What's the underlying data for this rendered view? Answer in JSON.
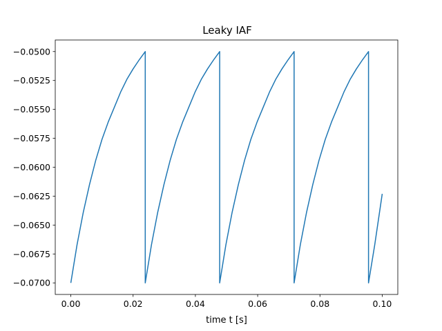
{
  "chart_data": {
    "type": "line",
    "title": "Leaky IAF",
    "xlabel": "time t [s]",
    "ylabel": "",
    "xlim": [
      -0.005,
      0.105
    ],
    "ylim": [
      -0.071,
      -0.049
    ],
    "x_ticks": [
      0.0,
      0.02,
      0.04,
      0.06,
      0.08,
      0.1
    ],
    "x_tick_labels": [
      "0.00",
      "0.02",
      "0.04",
      "0.06",
      "0.08",
      "0.10"
    ],
    "y_ticks": [
      -0.07,
      -0.0675,
      -0.065,
      -0.0625,
      -0.06,
      -0.0575,
      -0.055,
      -0.0525,
      -0.05
    ],
    "y_tick_labels": [
      "−0.0700",
      "−0.0675",
      "−0.0650",
      "−0.0625",
      "−0.0600",
      "−0.0575",
      "−0.0550",
      "−0.0525",
      "−0.0500"
    ],
    "grid": false,
    "series": [
      {
        "color": "#1f77b4",
        "x": [
          0.0,
          0.002,
          0.004,
          0.006,
          0.008,
          0.01,
          0.012,
          0.014,
          0.016,
          0.018,
          0.02,
          0.022,
          0.0239,
          0.0239,
          0.0259,
          0.0279,
          0.0299,
          0.0319,
          0.0339,
          0.0359,
          0.0379,
          0.0399,
          0.0419,
          0.0439,
          0.0459,
          0.0478,
          0.0478,
          0.0498,
          0.0518,
          0.0538,
          0.0558,
          0.0578,
          0.0598,
          0.0618,
          0.0638,
          0.0658,
          0.0678,
          0.0698,
          0.0717,
          0.0717,
          0.0737,
          0.0757,
          0.0777,
          0.0797,
          0.0817,
          0.0837,
          0.0857,
          0.0877,
          0.0897,
          0.0917,
          0.0937,
          0.0956,
          0.0956,
          0.0976,
          0.1
        ],
        "y": [
          -0.07,
          -0.0667,
          -0.0639,
          -0.0615,
          -0.0594,
          -0.0576,
          -0.0561,
          -0.0548,
          -0.0535,
          -0.0524,
          -0.0515,
          -0.0507,
          -0.05,
          -0.07,
          -0.0667,
          -0.0639,
          -0.0615,
          -0.0594,
          -0.0576,
          -0.0561,
          -0.0548,
          -0.0535,
          -0.0524,
          -0.0515,
          -0.0507,
          -0.05,
          -0.07,
          -0.0667,
          -0.0639,
          -0.0615,
          -0.0594,
          -0.0576,
          -0.0561,
          -0.0548,
          -0.0535,
          -0.0524,
          -0.0515,
          -0.0507,
          -0.05,
          -0.07,
          -0.0667,
          -0.0639,
          -0.0615,
          -0.0594,
          -0.0576,
          -0.0561,
          -0.0548,
          -0.0535,
          -0.0524,
          -0.0515,
          -0.0507,
          -0.05,
          -0.07,
          -0.0667,
          -0.0623
        ]
      }
    ]
  }
}
